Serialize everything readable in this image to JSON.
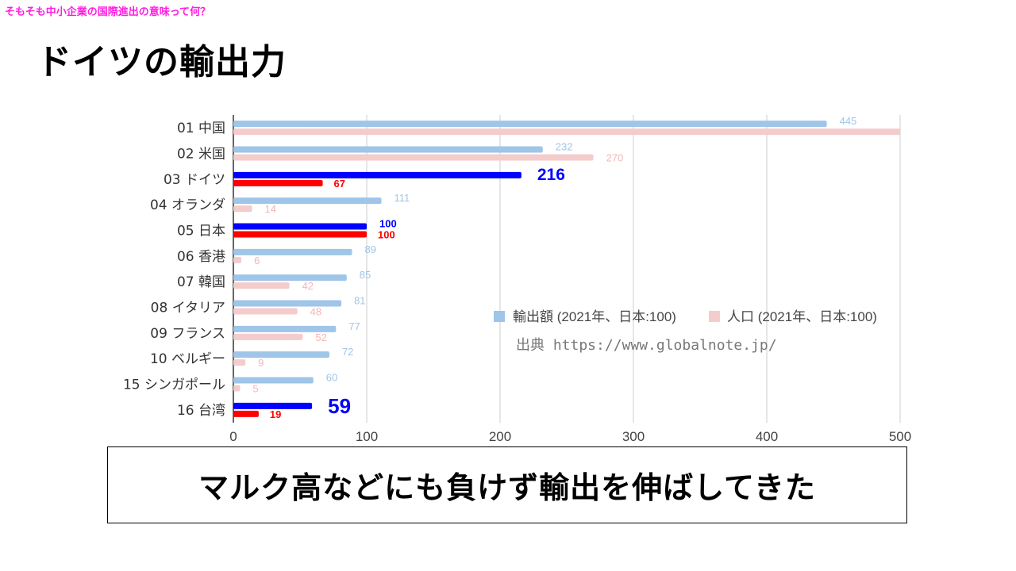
{
  "slide": {
    "top_caption": "そもそも中小企業の国際進出の意味って何？",
    "title": "ドイツの輸出力",
    "message": "マルク高などにも負けず輸出を伸ばしてきた"
  },
  "chart_data": {
    "type": "bar",
    "orientation": "horizontal",
    "categories": [
      "01 中国",
      "02 米国",
      "03 ドイツ",
      "04 オランダ",
      "05 日本",
      "06 香港",
      "07 韓国",
      "08 イタリア",
      "09 フランス",
      "10 ベルギー",
      "15 シンガポール",
      "16 台湾"
    ],
    "series": [
      {
        "name": "輸出額 (2021年、日本:100)",
        "values": [
          445,
          232,
          216,
          111,
          100,
          89,
          85,
          81,
          77,
          72,
          60,
          59
        ],
        "color": "#9fc5e8",
        "highlight_color": "#0000ff",
        "highlight": [
          false,
          false,
          true,
          false,
          true,
          false,
          false,
          false,
          false,
          false,
          false,
          true
        ]
      },
      {
        "name": "人口 (2021年、日本:100)",
        "values": [
          500,
          270,
          67,
          14,
          100,
          6,
          42,
          48,
          52,
          9,
          5,
          19
        ],
        "color": "#f4cccc",
        "highlight_color": "#ff0000",
        "highlight": [
          false,
          false,
          true,
          false,
          true,
          false,
          false,
          false,
          false,
          false,
          false,
          true
        ]
      }
    ],
    "data_labels": {
      "export": [
        "445",
        "232",
        "216",
        "111",
        "100",
        "89",
        "85",
        "81",
        "77",
        "72",
        "60",
        "59"
      ],
      "population": [
        "",
        "270",
        "67",
        "14",
        "100",
        "6",
        "42",
        "48",
        "52",
        "9",
        "5",
        "19"
      ]
    },
    "x_ticks": [
      "0",
      "100",
      "200",
      "300",
      "400",
      "500"
    ],
    "xlim": [
      0,
      500
    ],
    "grid": true,
    "legend_position": "right",
    "source_note": "出典 https://www.globalnote.jp/"
  }
}
